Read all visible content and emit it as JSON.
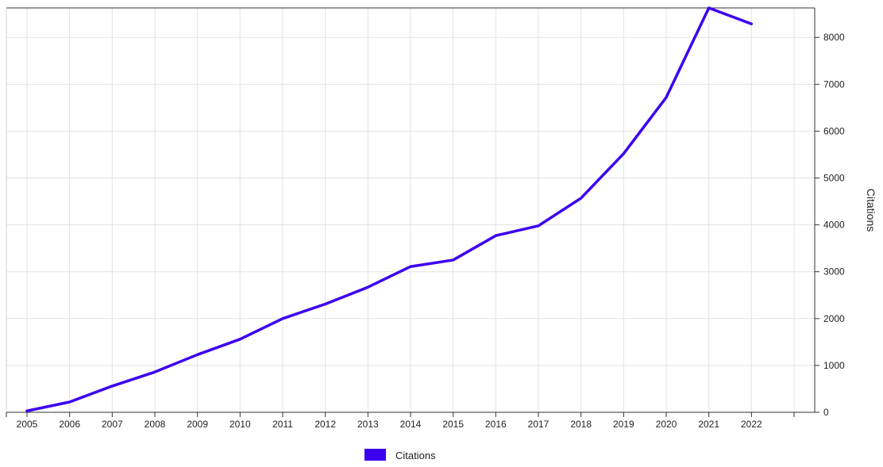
{
  "chart_data": {
    "type": "line",
    "x": [
      "2005",
      "2006",
      "2007",
      "2008",
      "2009",
      "2010",
      "2011",
      "2012",
      "2013",
      "2014",
      "2015",
      "2016",
      "2017",
      "2018",
      "2019",
      "2020",
      "2021",
      "2022"
    ],
    "series": [
      {
        "name": "Citations",
        "color": "#3b00f0",
        "values": [
          30,
          220,
          560,
          860,
          1230,
          1560,
          2000,
          2310,
          2670,
          3110,
          3250,
          3770,
          3980,
          4570,
          5520,
          6720,
          8630,
          8290
        ]
      }
    ],
    "y_ticks": [
      0,
      1000,
      2000,
      3000,
      4000,
      5000,
      6000,
      7000,
      8000
    ],
    "ylim": [
      0,
      8630
    ],
    "ylabel": "Citations",
    "legend": {
      "position": "bottom-center",
      "label": "Citations",
      "color": "#3b00f0"
    },
    "grid": true,
    "y_axis_side": "right"
  }
}
